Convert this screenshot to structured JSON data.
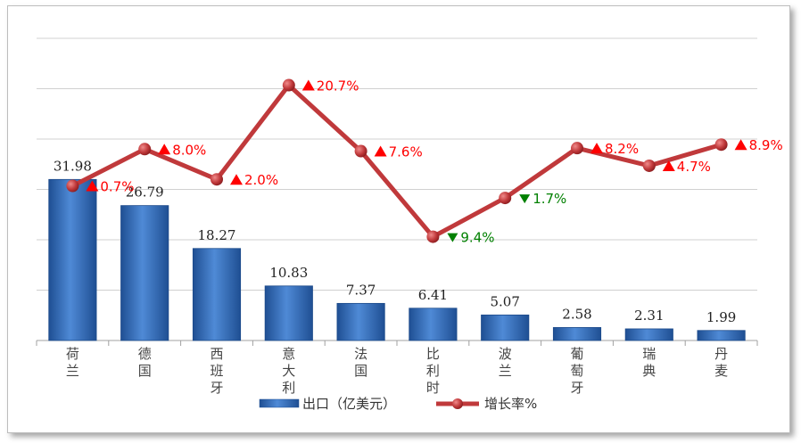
{
  "chart_data": {
    "type": "bar",
    "categories": [
      "荷兰",
      "德国",
      "西班牙",
      "意大利",
      "法国",
      "比利时",
      "波兰",
      "葡萄牙",
      "瑞典",
      "丹麦"
    ],
    "series": [
      {
        "name": "出口（亿美元）",
        "type": "bar",
        "values": [
          31.98,
          26.79,
          18.27,
          10.83,
          7.37,
          6.41,
          5.07,
          2.58,
          2.31,
          1.99
        ],
        "labels": [
          "31.98",
          "26.79",
          "18.27",
          "10.83",
          "7.37",
          "6.41",
          "5.07",
          "2.58",
          "2.31",
          "1.99"
        ],
        "color": "#2e6ab8"
      },
      {
        "name": "增长率%",
        "type": "line",
        "values": [
          0.7,
          8.0,
          2.0,
          20.7,
          7.6,
          -9.4,
          -1.7,
          8.2,
          4.7,
          8.9
        ],
        "labels": [
          "0.7%",
          "8.0%",
          "2.0%",
          "20.7%",
          "7.6%",
          "9.4%",
          "1.7%",
          "8.2%",
          "4.7%",
          "8.9%"
        ],
        "color": "#c0393b"
      }
    ],
    "y_left_range": [
      0,
      60
    ],
    "y_right_range": [
      -30,
      30
    ],
    "grid": true,
    "legend": "bottom",
    "up_color": "#ff0000",
    "down_color": "#008000"
  }
}
